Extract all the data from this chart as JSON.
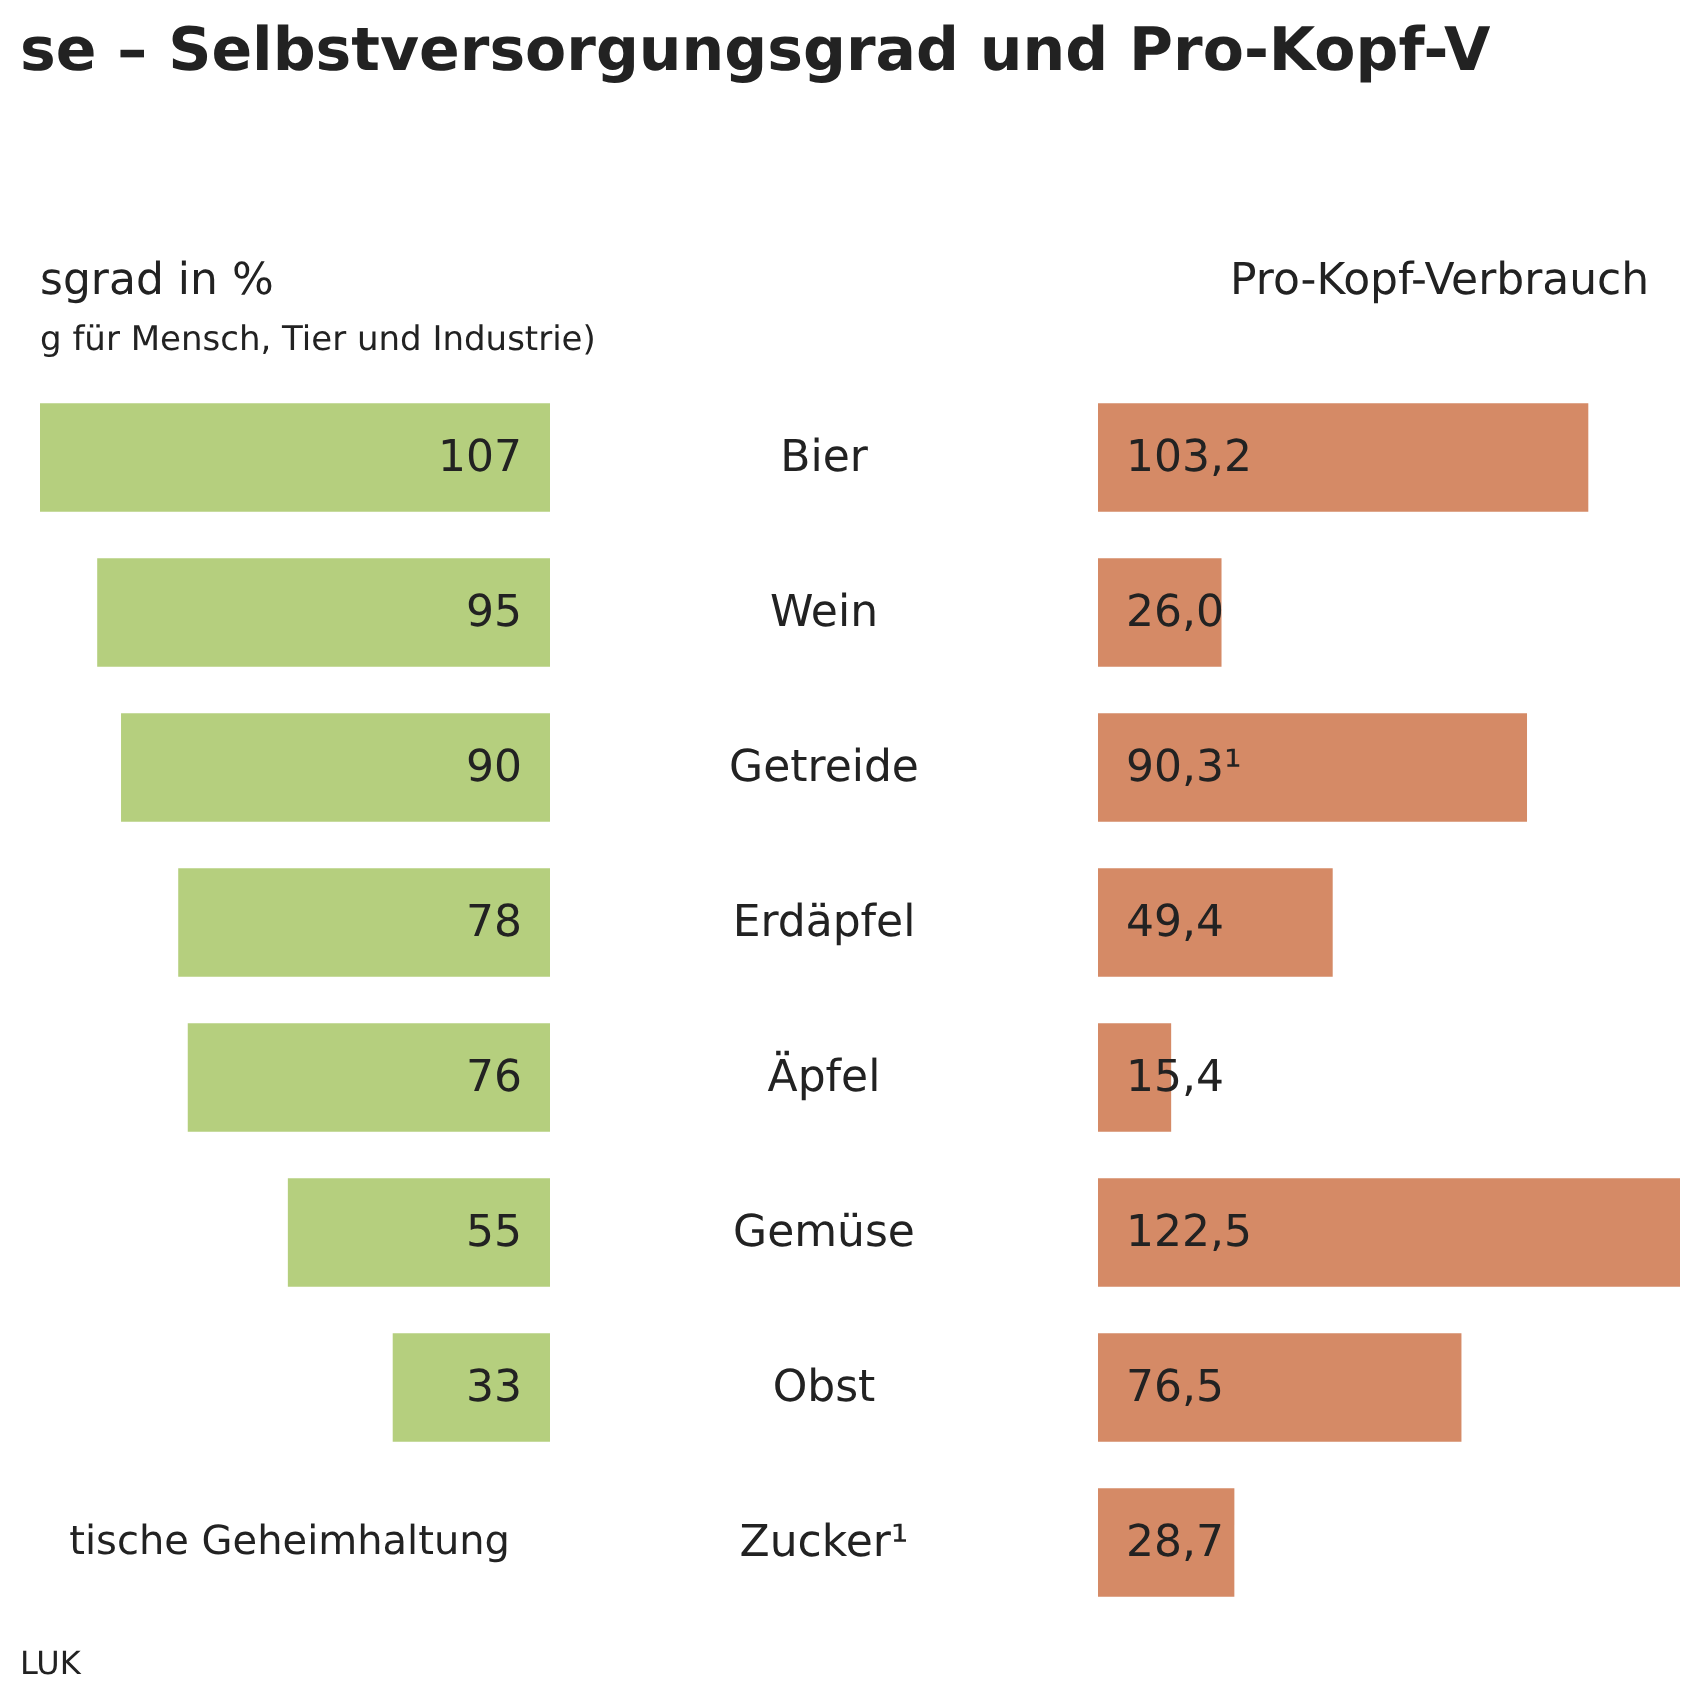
{
  "chart_data": [
    {
      "type": "bar",
      "orientation": "horizontal",
      "title": "se – Selbstversorgungsgrad und Pro-Kopf-V",
      "xlabel": "sgrad in %",
      "subtitle": "g für Mensch, Tier und Industrie)",
      "categories": [
        "Bier",
        "Wein",
        "Getreide",
        "Erdäpfel",
        "Äpfel",
        "Gemüse",
        "Obst",
        "Zucker¹"
      ],
      "values": [
        107,
        95,
        90,
        78,
        76,
        55,
        33,
        null
      ],
      "color": "#b5cf7e",
      "data_labels": true,
      "tick_labels": "y",
      "annotations": [
        "tische Geheimhaltung",
        "LUK"
      ]
    },
    {
      "type": "bar",
      "orientation": "horizontal",
      "xlabel": "Pro-Kopf-Verbrauch",
      "categories": [
        null,
        null,
        null,
        null,
        null,
        null,
        null,
        null
      ],
      "values": [
        103.2,
        26.0,
        90.3,
        49.4,
        15.4,
        122.5,
        76.5,
        28.7
      ],
      "color": "#d58a66",
      "tick_labels": false,
      "value_labels": [
        "103,2",
        "26,0",
        "90,3¹",
        "49,4",
        "15,4",
        "122,5",
        "76,5",
        "28,7"
      ]
    }
  ]
}
